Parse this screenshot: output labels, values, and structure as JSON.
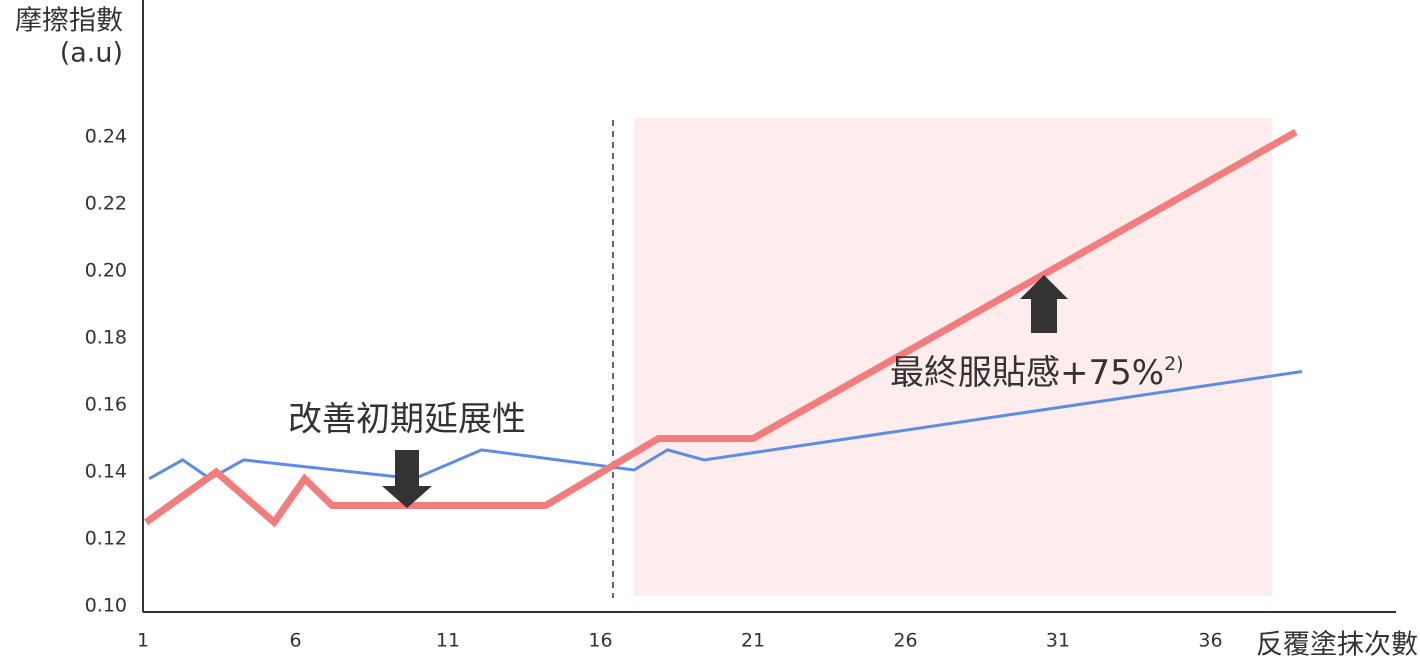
{
  "chart_data": {
    "type": "line",
    "y_label": "摩擦指數",
    "y_unit": "(a.u)",
    "x_label": "反覆塗抹次數",
    "xlim": [
      1,
      42
    ],
    "xticks": [
      1,
      6,
      11,
      16,
      21,
      26,
      31,
      36
    ],
    "ylim": [
      0.1,
      0.28
    ],
    "yticks": [
      {
        "value": 0.1,
        "label": "0.10"
      },
      0.12,
      0.14,
      0.16,
      0.18,
      {
        "value": 0.2,
        "label": "0.20"
      },
      0.22,
      0.24
    ],
    "grid": false,
    "series": [
      {
        "color": "#5b8ce8",
        "width": 3,
        "x": [
          1.2,
          2.3,
          3.2,
          4.3,
          9.9,
          12.1,
          17.1,
          18.2,
          19.4,
          39.0
        ],
        "values": [
          0.138,
          0.1436,
          0.138,
          0.1436,
          0.138,
          0.1466,
          0.1406,
          0.1466,
          0.1436,
          0.17
        ]
      },
      {
        "color": "#f47c7c",
        "width": 7,
        "x": [
          1.1,
          3.4,
          5.3,
          6.3,
          7.2,
          14.2,
          17.9,
          21.0,
          38.8
        ],
        "values": [
          0.125,
          0.14,
          0.125,
          0.138,
          0.13,
          0.13,
          0.15,
          0.15,
          0.2415
        ]
      }
    ],
    "annotations": [
      {
        "text": "改善初期延展性"
      },
      {
        "text": "最終服貼感+75%",
        "note": "2)"
      }
    ]
  }
}
